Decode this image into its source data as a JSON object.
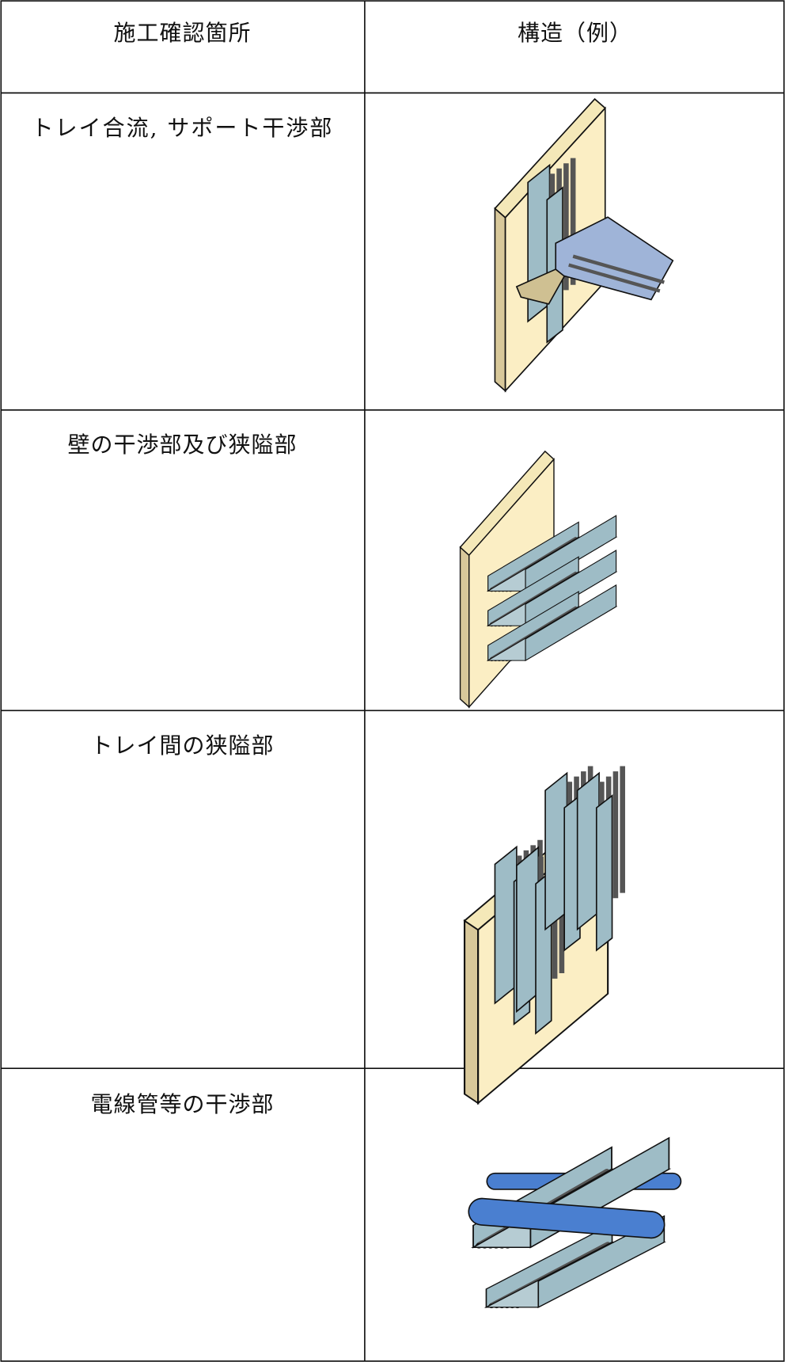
{
  "table": {
    "header": [
      "施工確認箇所",
      "構造（例）"
    ],
    "rows": [
      [
        "トレイ合流, サポート干渉部"
      ],
      [
        "壁の干渉部及び狭隘部"
      ],
      [
        "トレイ間の狭隘部"
      ],
      [
        "電線管等の干渉部"
      ]
    ]
  }
}
